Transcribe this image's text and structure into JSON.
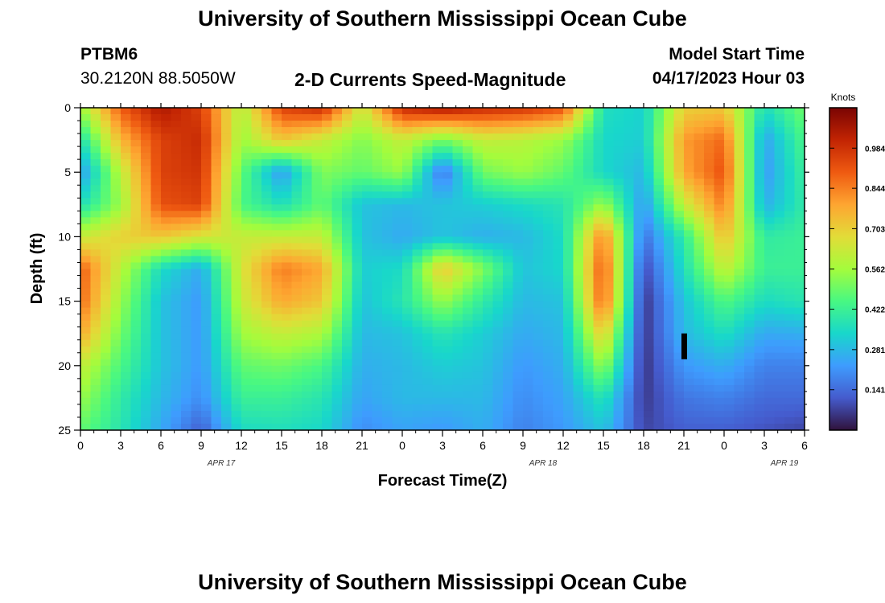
{
  "header": {
    "title": "University of Southern Mississippi Ocean Cube",
    "station": "PTBM6",
    "coords": "30.2120N  88.5050W",
    "plot_title": "2-D Currents Speed-Magnitude",
    "model_start_label": "Model Start Time",
    "model_start_value": "04/17/2023 Hour 03"
  },
  "footer": {
    "title": "University of Southern Mississippi Ocean Cube"
  },
  "chart_data": {
    "type": "heatmap",
    "title": "2-D Currents Speed-Magnitude",
    "xlabel": "Forecast Time(Z)",
    "ylabel": "Depth (ft)",
    "x_tick_labels": [
      "0",
      "3",
      "6",
      "9",
      "12",
      "15",
      "18",
      "21",
      "0",
      "3",
      "6",
      "9",
      "12",
      "15",
      "18",
      "21",
      "0",
      "3",
      "6"
    ],
    "date_labels": [
      {
        "label": "APR 17",
        "at_tick": 3.5
      },
      {
        "label": "APR 18",
        "at_tick": 11.5
      },
      {
        "label": "APR 19",
        "at_tick": 17.5
      }
    ],
    "x_range_hours": [
      0,
      54
    ],
    "y_tick_labels": [
      "0",
      "5",
      "10",
      "15",
      "20",
      "25"
    ],
    "y_range_ft": [
      0,
      25
    ],
    "y_inverted": true,
    "colorbar": {
      "title": "Knots",
      "ticks": [
        "0.984",
        "0.844",
        "0.703",
        "0.562",
        "0.422",
        "0.281",
        "0.141"
      ],
      "tick_values": [
        0.984,
        0.844,
        0.703,
        0.562,
        0.422,
        0.281,
        0.141
      ],
      "range": [
        0,
        1.125
      ],
      "colormap": "turbo"
    },
    "columns_hours": [
      0,
      3,
      6,
      9,
      12,
      15,
      18,
      21,
      24,
      27,
      30,
      33,
      36,
      39,
      42,
      45,
      48,
      51,
      54
    ],
    "rows_depth_ft": [
      0,
      2.5,
      5,
      7.5,
      10,
      12.5,
      15,
      17.5,
      20,
      22.5,
      25
    ],
    "speed_knots": [
      [
        0.55,
        0.9,
        1.05,
        0.95,
        0.58,
        0.95,
        1.0,
        0.62,
        1.0,
        1.05,
        1.0,
        0.98,
        0.92,
        0.36,
        0.33,
        0.7,
        0.72,
        0.36,
        0.5
      ],
      [
        0.36,
        0.75,
        0.95,
        1.0,
        0.55,
        0.72,
        0.62,
        0.52,
        0.62,
        0.5,
        0.62,
        0.6,
        0.55,
        0.34,
        0.32,
        0.8,
        0.88,
        0.24,
        0.45
      ],
      [
        0.22,
        0.6,
        0.95,
        0.98,
        0.48,
        0.22,
        0.52,
        0.48,
        0.55,
        0.15,
        0.5,
        0.55,
        0.48,
        0.34,
        0.28,
        0.78,
        0.92,
        0.22,
        0.42
      ],
      [
        0.36,
        0.55,
        0.92,
        0.95,
        0.45,
        0.36,
        0.48,
        0.3,
        0.28,
        0.3,
        0.32,
        0.35,
        0.38,
        0.55,
        0.22,
        0.62,
        0.85,
        0.26,
        0.4
      ],
      [
        0.62,
        0.7,
        0.72,
        0.65,
        0.62,
        0.62,
        0.62,
        0.3,
        0.25,
        0.3,
        0.26,
        0.28,
        0.35,
        0.85,
        0.15,
        0.4,
        0.74,
        0.4,
        0.42
      ],
      [
        0.9,
        0.6,
        0.35,
        0.25,
        0.65,
        0.85,
        0.78,
        0.32,
        0.35,
        0.72,
        0.52,
        0.3,
        0.34,
        0.92,
        0.08,
        0.36,
        0.62,
        0.42,
        0.42
      ],
      [
        0.88,
        0.55,
        0.3,
        0.22,
        0.62,
        0.78,
        0.72,
        0.3,
        0.38,
        0.55,
        0.4,
        0.28,
        0.3,
        0.9,
        0.05,
        0.3,
        0.46,
        0.35,
        0.38
      ],
      [
        0.78,
        0.5,
        0.3,
        0.22,
        0.56,
        0.62,
        0.58,
        0.28,
        0.3,
        0.38,
        0.32,
        0.25,
        0.28,
        0.72,
        0.05,
        0.28,
        0.36,
        0.25,
        0.26
      ],
      [
        0.62,
        0.45,
        0.3,
        0.22,
        0.48,
        0.5,
        0.45,
        0.26,
        0.28,
        0.32,
        0.3,
        0.22,
        0.26,
        0.55,
        0.05,
        0.22,
        0.26,
        0.18,
        0.18
      ],
      [
        0.55,
        0.4,
        0.28,
        0.2,
        0.42,
        0.42,
        0.38,
        0.24,
        0.28,
        0.28,
        0.28,
        0.2,
        0.24,
        0.38,
        0.06,
        0.16,
        0.18,
        0.14,
        0.14
      ],
      [
        0.48,
        0.38,
        0.25,
        0.12,
        0.35,
        0.36,
        0.34,
        0.2,
        0.24,
        0.22,
        0.26,
        0.18,
        0.22,
        0.3,
        0.08,
        0.12,
        0.12,
        0.1,
        0.08
      ]
    ],
    "marker": {
      "x_hour": 45,
      "depth_range_ft": [
        17.5,
        19.5
      ],
      "color": "#000000"
    },
    "grid": false
  },
  "colors": {
    "background": "#ffffff",
    "text": "#000000"
  }
}
